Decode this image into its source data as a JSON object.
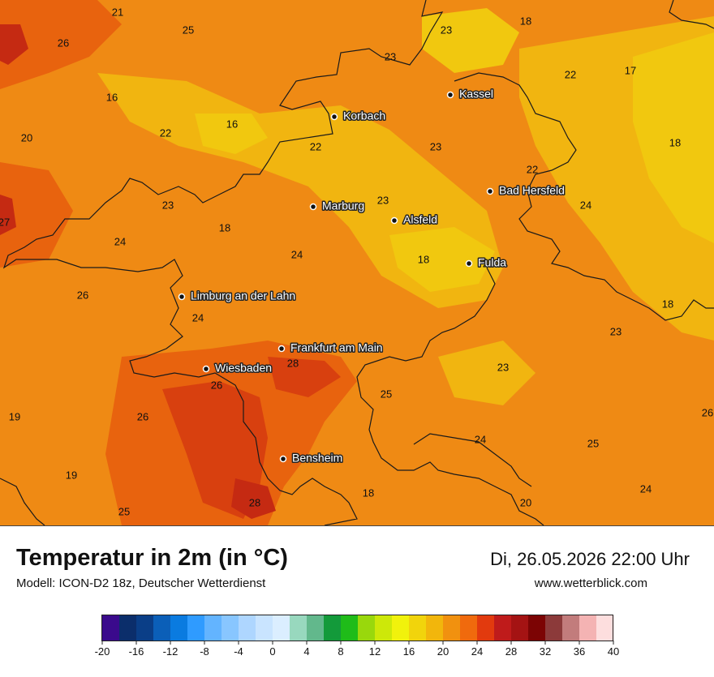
{
  "title": "Temperatur in 2m (in °C)",
  "model": "Modell: ICON-D2 18z, Deutscher Wetterdienst",
  "datetime": "Di, 26.05.2026 22:00 Uhr",
  "website": "www.wetterblick.com",
  "cities": [
    {
      "name": "Kassel"
    },
    {
      "name": "Korbach"
    },
    {
      "name": "Bad Hersfeld"
    },
    {
      "name": "Marburg"
    },
    {
      "name": "Alsfeld"
    },
    {
      "name": "Fulda"
    },
    {
      "name": "Limburg an der Lahn"
    },
    {
      "name": "Frankfurt am Main"
    },
    {
      "name": "Wiesbaden"
    },
    {
      "name": "Bensheim"
    }
  ],
  "map_values": [
    "21",
    "25",
    "26",
    "23",
    "18",
    "23",
    "22",
    "17",
    "16",
    "16",
    "20",
    "22",
    "22",
    "23",
    "18",
    "22",
    "23",
    "23",
    "27",
    "24",
    "18",
    "24",
    "18",
    "23",
    "26",
    "24",
    "18",
    "28",
    "23",
    "26",
    "25",
    "23",
    "19",
    "26",
    "26",
    "24",
    "25",
    "19",
    "18",
    "24",
    "24",
    "28",
    "25",
    "20"
  ],
  "legend": {
    "ticks": [
      "-20",
      "-16",
      "-12",
      "-8",
      "-4",
      "0",
      "4",
      "8",
      "12",
      "16",
      "20",
      "24",
      "28",
      "32",
      "36",
      "40"
    ],
    "colors": [
      "#3a0a8c",
      "#0b2e6b",
      "#0a3e87",
      "#0b5fb8",
      "#0a7be0",
      "#2f9bff",
      "#63b4ff",
      "#88c6ff",
      "#aed6ff",
      "#c9e4ff",
      "#dbeeff",
      "#98d8be",
      "#62b88c",
      "#139a3a",
      "#1fbc19",
      "#99d80c",
      "#cde809",
      "#f1f20c",
      "#f1d40c",
      "#f2b60c",
      "#f1910f",
      "#f06a0d",
      "#e23a0e",
      "#bf1b1b",
      "#a41313",
      "#7c0404",
      "#8c3a3a",
      "#c27c7c",
      "#f4b3b3",
      "#fddede"
    ]
  }
}
